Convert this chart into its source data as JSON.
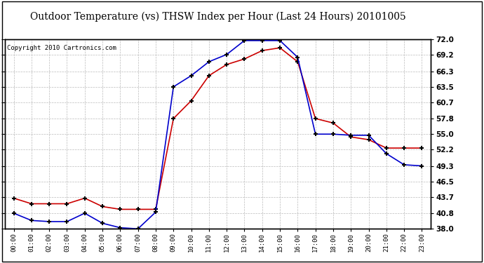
{
  "title": "Outdoor Temperature (vs) THSW Index per Hour (Last 24 Hours) 20101005",
  "copyright": "Copyright 2010 Cartronics.com",
  "hours": [
    "00:00",
    "01:00",
    "02:00",
    "03:00",
    "04:00",
    "05:00",
    "06:00",
    "07:00",
    "08:00",
    "09:00",
    "10:00",
    "11:00",
    "12:00",
    "13:00",
    "14:00",
    "15:00",
    "16:00",
    "17:00",
    "18:00",
    "19:00",
    "20:00",
    "21:00",
    "22:00",
    "23:00"
  ],
  "temp_red": [
    43.5,
    42.5,
    42.5,
    42.5,
    43.5,
    42.0,
    41.5,
    41.5,
    41.5,
    57.8,
    61.0,
    65.5,
    67.5,
    68.5,
    70.0,
    70.5,
    68.0,
    57.8,
    57.0,
    54.5,
    54.0,
    52.5,
    52.5,
    52.5
  ],
  "thsw_blue": [
    40.8,
    39.5,
    39.3,
    39.3,
    40.8,
    39.0,
    38.2,
    38.0,
    41.0,
    63.5,
    65.5,
    68.0,
    69.3,
    71.8,
    71.8,
    71.8,
    68.8,
    55.0,
    55.0,
    54.8,
    54.8,
    51.5,
    49.5,
    49.3
  ],
  "ylim": [
    38.0,
    72.0
  ],
  "yticks": [
    38.0,
    40.8,
    43.7,
    46.5,
    49.3,
    52.2,
    55.0,
    57.8,
    60.7,
    63.5,
    66.3,
    69.2,
    72.0
  ],
  "line_color_red": "#cc0000",
  "line_color_blue": "#0000cc",
  "bg_color": "#ffffff",
  "grid_color": "#bbbbbb",
  "title_fontsize": 10,
  "copyright_fontsize": 6.5
}
